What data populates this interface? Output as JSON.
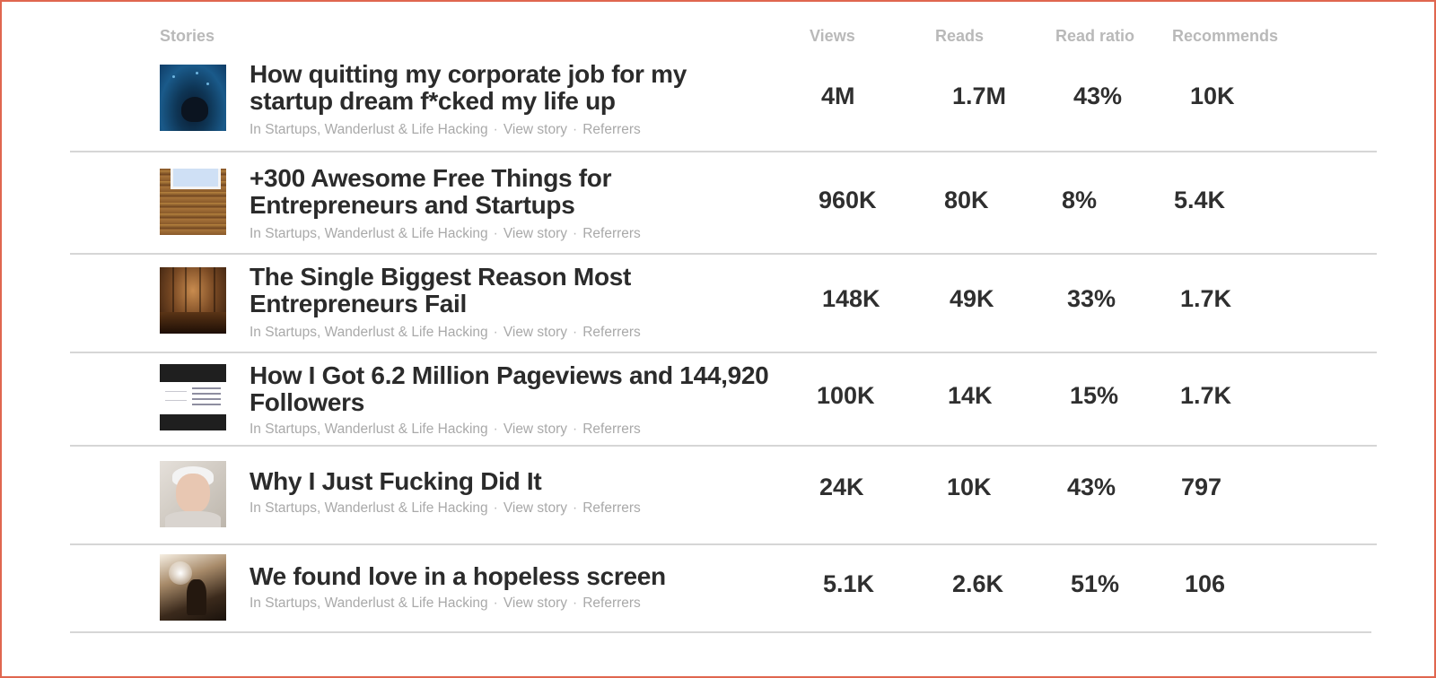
{
  "header": {
    "stories": "Stories",
    "views": "Views",
    "reads": "Reads",
    "read_ratio": "Read ratio",
    "recommends": "Recommends"
  },
  "meta": {
    "publication": "In Startups, Wanderlust & Life Hacking",
    "separator": "·",
    "view_story": "View story",
    "referrers": "Referrers"
  },
  "stories": [
    {
      "title": "How quitting my corporate job for my startup dream f*cked my life up",
      "views": "4M",
      "reads": "1.7M",
      "read_ratio": "43%",
      "recommends": "10K",
      "thumb_icon": "underwater-swimmer-image"
    },
    {
      "title": "+300 Awesome Free Things for Entrepreneurs and Startups",
      "views": "960K",
      "reads": "80K",
      "read_ratio": "8%",
      "recommends": "5.4K",
      "thumb_icon": "wooden-desk-laptop-image"
    },
    {
      "title": "The Single Biggest Reason Most Entrepreneurs Fail",
      "views": "148K",
      "reads": "49K",
      "read_ratio": "33%",
      "recommends": "1.7K",
      "thumb_icon": "wooden-room-image"
    },
    {
      "title": "How I Got 6.2 Million Pageviews and 144,920 Followers",
      "views": "100K",
      "reads": "14K",
      "read_ratio": "15%",
      "recommends": "1.7K",
      "thumb_icon": "stats-screenshot-image"
    },
    {
      "title": "Why I Just Fucking Did It",
      "views": "24K",
      "reads": "10K",
      "read_ratio": "43%",
      "recommends": "797",
      "thumb_icon": "old-woman-portrait-image"
    },
    {
      "title": "We found love in a hopeless screen",
      "views": "5.1K",
      "reads": "2.6K",
      "read_ratio": "51%",
      "recommends": "106",
      "thumb_icon": "sunset-silhouette-image"
    }
  ],
  "colors": {
    "frame": "#e0664f",
    "header_text": "#b9b9b9",
    "title_text": "#2b2b2b",
    "meta_text": "#a9a9a9",
    "divider": "#d6d6d6"
  }
}
